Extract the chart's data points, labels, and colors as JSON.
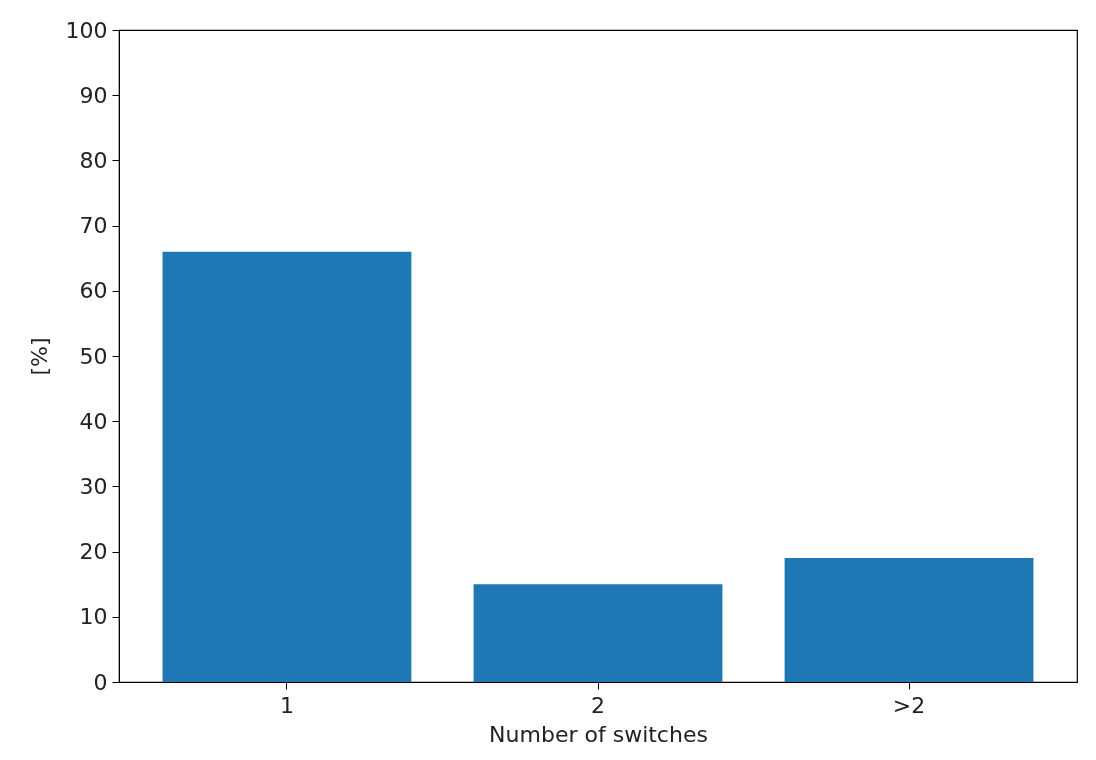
{
  "chart_data": {
    "type": "bar",
    "xlabel": "Number of switches",
    "ylabel": "[%]",
    "categories": [
      "1",
      "2",
      ">2"
    ],
    "values": [
      66,
      15,
      19
    ],
    "color": "#1f77b4",
    "ylim": [
      0,
      100
    ],
    "yticks": [
      0,
      10,
      20,
      30,
      40,
      50,
      60,
      70,
      80,
      90,
      100
    ],
    "grid": false
  }
}
